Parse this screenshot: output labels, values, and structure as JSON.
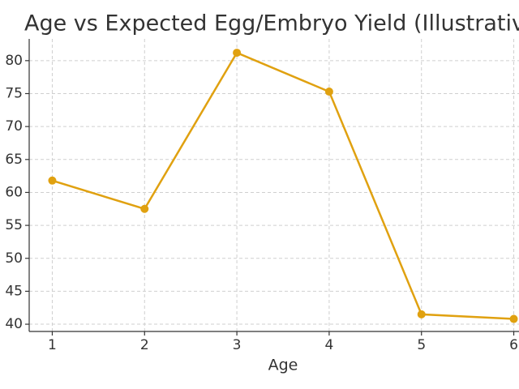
{
  "chart_data": {
    "type": "line",
    "title": "Age vs Expected Egg/Embryo Yield (Illustrativ",
    "x_label": "Age",
    "x": [
      1,
      2,
      3,
      4,
      5,
      6
    ],
    "series": [
      {
        "color": "#e0a110",
        "values": [
          61.8,
          57.5,
          81.2,
          75.3,
          41.5,
          40.8
        ]
      }
    ],
    "xlim": [
      0.75,
      6.25
    ],
    "xticks": [
      1,
      2,
      3,
      4,
      5,
      6
    ],
    "ylim": [
      38.9,
      83.3
    ],
    "yticks": [
      40,
      45,
      50,
      55,
      60,
      65,
      70,
      75,
      80
    ],
    "grid": true
  }
}
